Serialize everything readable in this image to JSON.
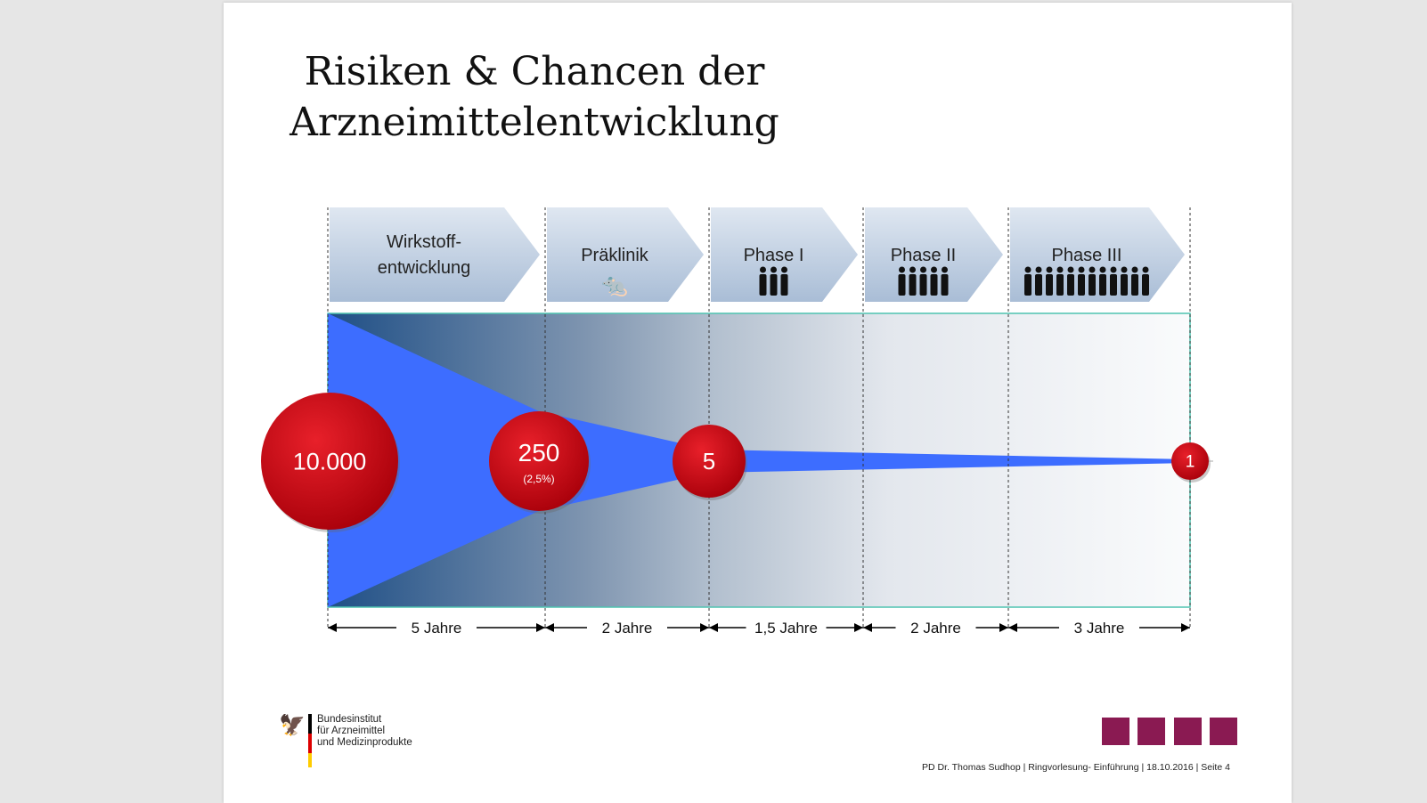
{
  "title": {
    "line1": "Risiken & Chancen der",
    "line2": "Arzneimittelentwicklung"
  },
  "phases": [
    {
      "label1": "Wirkstoff-",
      "label2": "entwicklung",
      "icon": "none"
    },
    {
      "label1": "Präklinik",
      "icon": "rat-icon"
    },
    {
      "label1": "Phase I",
      "icon": "people-icon",
      "people": 3
    },
    {
      "label1": "Phase II",
      "icon": "people-icon",
      "people": 5
    },
    {
      "label1": "Phase III",
      "icon": "people-icon",
      "people": 12
    }
  ],
  "counts": [
    {
      "value": "10.000"
    },
    {
      "value": "250",
      "sub": "(2,5%)"
    },
    {
      "value": "5"
    },
    {
      "value": "1"
    }
  ],
  "durations": [
    "5 Jahre",
    "2 Jahre",
    "1,5 Jahre",
    "2 Jahre",
    "3 Jahre"
  ],
  "logo": {
    "line1": "Bundesinstitut",
    "line2": "für Arzneimittel",
    "line3": "und Medizinprodukte"
  },
  "footer": "PD Dr. Thomas Sudhop | Ringvorlesung- Einführung | 18.10.2016 | Seite 4",
  "colors": {
    "funnel": "#3d6dff",
    "circle": "#d0101a",
    "accent": "#8a1a52",
    "band": "#4a6f96"
  }
}
